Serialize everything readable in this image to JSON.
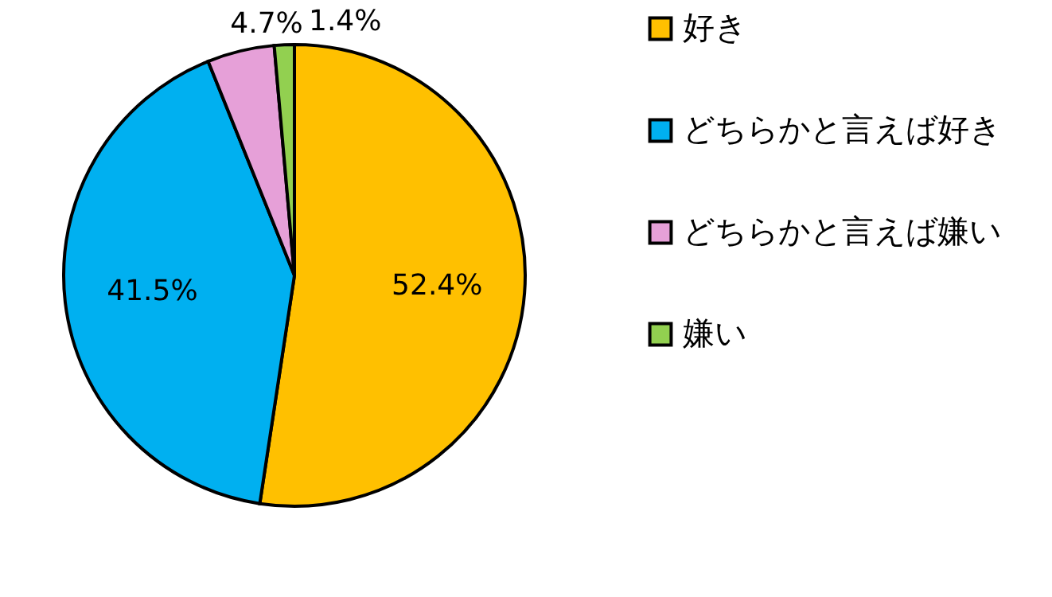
{
  "chart_data": {
    "type": "pie",
    "categories": [
      "好き",
      "どちらかと言えば好き",
      "どちらかと言えば嫌い",
      "嫌い"
    ],
    "values": [
      52.4,
      41.5,
      4.7,
      1.4
    ],
    "colors": [
      "#ffc000",
      "#00b0f0",
      "#e6a0d8",
      "#92d050"
    ],
    "value_labels": [
      "52.4%",
      "41.5%",
      "4.7%",
      "1.4%"
    ],
    "legend": "right"
  }
}
